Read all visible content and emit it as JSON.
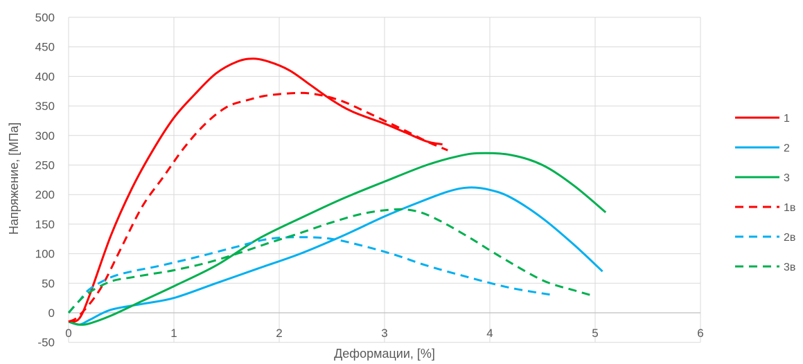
{
  "chart_data": {
    "type": "line",
    "title": "",
    "xlabel": "Деформации, [%]",
    "ylabel": "Напряжение, [МПа]",
    "xlim": [
      0,
      6
    ],
    "ylim": [
      -50,
      500
    ],
    "xticks": [
      "0",
      "1",
      "2",
      "3",
      "4",
      "5",
      "6"
    ],
    "yticks": [
      "-50",
      "0",
      "50",
      "100",
      "150",
      "200",
      "250",
      "300",
      "350",
      "400",
      "450",
      "500"
    ],
    "grid": true,
    "legend_position": "right",
    "series": [
      {
        "name": "1",
        "color": "#ff0000",
        "dashed": false,
        "points": [
          [
            0.0,
            -15
          ],
          [
            0.1,
            -10
          ],
          [
            0.2,
            30
          ],
          [
            0.4,
            130
          ],
          [
            0.6,
            210
          ],
          [
            0.8,
            275
          ],
          [
            1.0,
            330
          ],
          [
            1.2,
            370
          ],
          [
            1.4,
            405
          ],
          [
            1.6,
            425
          ],
          [
            1.75,
            430
          ],
          [
            1.9,
            425
          ],
          [
            2.1,
            410
          ],
          [
            2.3,
            385
          ],
          [
            2.5,
            360
          ],
          [
            2.7,
            340
          ],
          [
            3.0,
            320
          ],
          [
            3.2,
            305
          ],
          [
            3.4,
            290
          ],
          [
            3.55,
            285
          ]
        ]
      },
      {
        "name": "2",
        "color": "#00b0f0",
        "dashed": false,
        "points": [
          [
            0.0,
            -15
          ],
          [
            0.1,
            -20
          ],
          [
            0.2,
            -12
          ],
          [
            0.4,
            5
          ],
          [
            0.7,
            15
          ],
          [
            1.0,
            25
          ],
          [
            1.4,
            50
          ],
          [
            1.8,
            75
          ],
          [
            2.2,
            100
          ],
          [
            2.6,
            130
          ],
          [
            3.0,
            163
          ],
          [
            3.3,
            185
          ],
          [
            3.6,
            205
          ],
          [
            3.8,
            212
          ],
          [
            4.0,
            208
          ],
          [
            4.2,
            195
          ],
          [
            4.5,
            160
          ],
          [
            4.8,
            115
          ],
          [
            5.07,
            70
          ]
        ]
      },
      {
        "name": "3",
        "color": "#00b050",
        "dashed": false,
        "points": [
          [
            0.0,
            -15
          ],
          [
            0.1,
            -20
          ],
          [
            0.2,
            -18
          ],
          [
            0.4,
            -5
          ],
          [
            0.7,
            20
          ],
          [
            1.0,
            45
          ],
          [
            1.4,
            80
          ],
          [
            1.8,
            125
          ],
          [
            2.2,
            160
          ],
          [
            2.6,
            193
          ],
          [
            3.0,
            222
          ],
          [
            3.4,
            250
          ],
          [
            3.7,
            265
          ],
          [
            3.9,
            270
          ],
          [
            4.2,
            267
          ],
          [
            4.5,
            250
          ],
          [
            4.8,
            215
          ],
          [
            5.1,
            170
          ]
        ]
      },
      {
        "name": "1в",
        "color": "#ff0000",
        "dashed": true,
        "points": [
          [
            0.0,
            -15
          ],
          [
            0.1,
            -5
          ],
          [
            0.3,
            40
          ],
          [
            0.5,
            110
          ],
          [
            0.7,
            180
          ],
          [
            0.9,
            230
          ],
          [
            1.1,
            280
          ],
          [
            1.3,
            320
          ],
          [
            1.5,
            348
          ],
          [
            1.7,
            360
          ],
          [
            1.9,
            368
          ],
          [
            2.2,
            372
          ],
          [
            2.4,
            368
          ],
          [
            2.6,
            358
          ],
          [
            2.8,
            342
          ],
          [
            3.0,
            325
          ],
          [
            3.2,
            308
          ],
          [
            3.4,
            290
          ],
          [
            3.6,
            275
          ]
        ]
      },
      {
        "name": "2в",
        "color": "#00b0f0",
        "dashed": true,
        "points": [
          [
            0.0,
            0
          ],
          [
            0.1,
            20
          ],
          [
            0.2,
            40
          ],
          [
            0.4,
            60
          ],
          [
            0.6,
            70
          ],
          [
            0.8,
            77
          ],
          [
            1.0,
            85
          ],
          [
            1.3,
            98
          ],
          [
            1.6,
            112
          ],
          [
            1.9,
            125
          ],
          [
            2.2,
            128
          ],
          [
            2.5,
            125
          ],
          [
            2.8,
            113
          ],
          [
            3.1,
            98
          ],
          [
            3.4,
            80
          ],
          [
            3.8,
            60
          ],
          [
            4.2,
            42
          ],
          [
            4.6,
            30
          ]
        ]
      },
      {
        "name": "3в",
        "color": "#00b050",
        "dashed": true,
        "points": [
          [
            0.0,
            0
          ],
          [
            0.1,
            20
          ],
          [
            0.2,
            35
          ],
          [
            0.4,
            53
          ],
          [
            0.6,
            60
          ],
          [
            0.8,
            66
          ],
          [
            1.0,
            72
          ],
          [
            1.3,
            84
          ],
          [
            1.6,
            100
          ],
          [
            1.9,
            118
          ],
          [
            2.2,
            135
          ],
          [
            2.5,
            153
          ],
          [
            2.8,
            168
          ],
          [
            3.1,
            175
          ],
          [
            3.3,
            172
          ],
          [
            3.5,
            158
          ],
          [
            3.8,
            128
          ],
          [
            4.1,
            95
          ],
          [
            4.5,
            55
          ],
          [
            4.8,
            38
          ],
          [
            5.0,
            28
          ]
        ]
      }
    ]
  }
}
